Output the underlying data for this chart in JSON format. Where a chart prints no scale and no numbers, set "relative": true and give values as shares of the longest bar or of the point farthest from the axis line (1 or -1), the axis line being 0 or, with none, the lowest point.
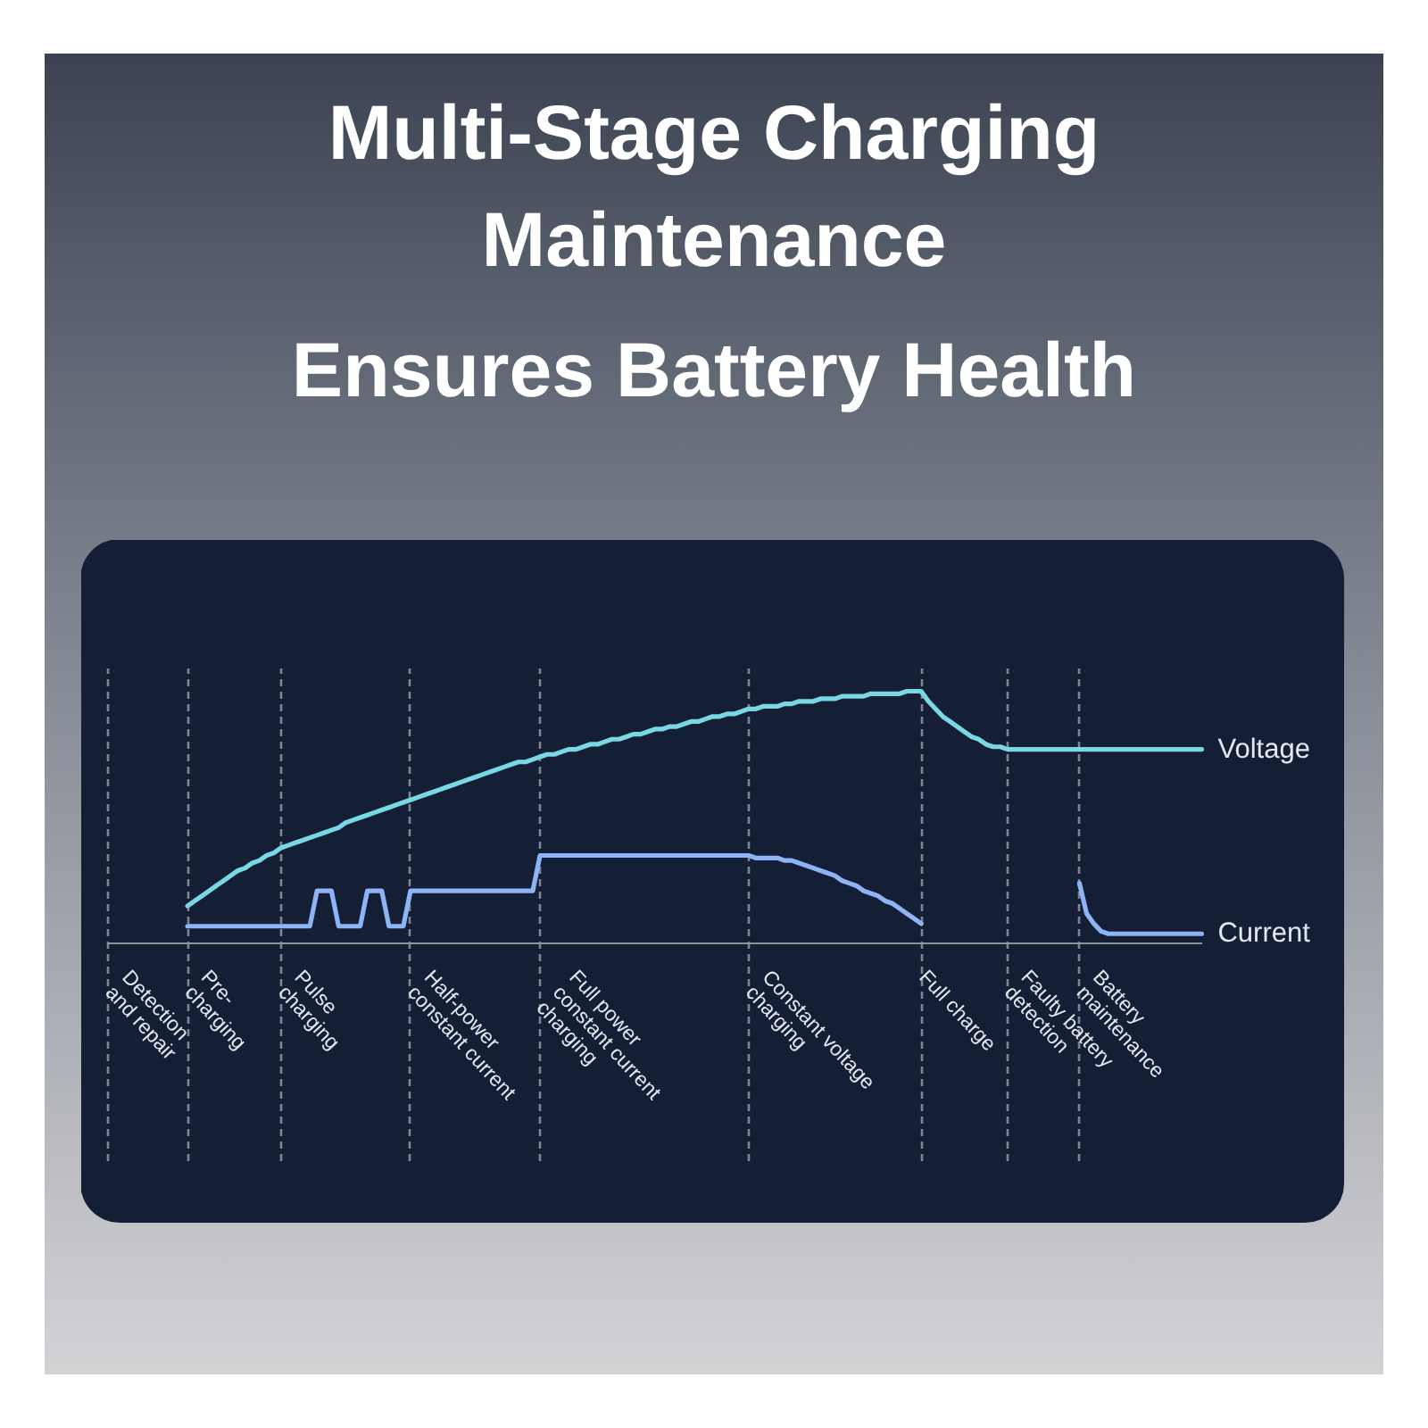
{
  "chart_data": {
    "type": "line",
    "title": "Multi-Stage Charging Maintenance",
    "subtitle": "Ensures Battery Health",
    "relative": true,
    "grid": "x",
    "categories": [
      "Detection\nand repair",
      null,
      null,
      null,
      null,
      null,
      null,
      null,
      null,
      null,
      null,
      "Pre-\ncharging",
      null,
      null,
      null,
      null,
      null,
      null,
      null,
      null,
      null,
      null,
      null,
      null,
      "Pulse\ncharging",
      null,
      null,
      null,
      null,
      null,
      null,
      null,
      null,
      null,
      null,
      null,
      null,
      null,
      null,
      null,
      null,
      null,
      "Half-power\nconstant current",
      null,
      null,
      null,
      null,
      null,
      null,
      null,
      null,
      null,
      null,
      null,
      null,
      null,
      null,
      null,
      null,
      null,
      "Full power\nconstant current\ncharging",
      null,
      null,
      null,
      null,
      null,
      null,
      null,
      null,
      null,
      null,
      null,
      null,
      null,
      null,
      null,
      null,
      null,
      null,
      null,
      null,
      null,
      null,
      null,
      null,
      null,
      null,
      null,
      null,
      "Constant voltage\ncharging",
      null,
      null,
      null,
      null,
      null,
      null,
      null,
      null,
      null,
      null,
      null,
      null,
      null,
      null,
      null,
      null,
      null,
      null,
      null,
      null,
      null,
      null,
      null,
      "Full charge",
      null,
      null,
      null,
      null,
      null,
      null,
      null,
      null,
      null,
      null,
      null,
      "Faulty battery\ndetection",
      null,
      null,
      null,
      null,
      null,
      null,
      null,
      null,
      null,
      "Battery\nmaintenance",
      null,
      null,
      null,
      null,
      null,
      null,
      null,
      null,
      null,
      null,
      null,
      null,
      null,
      null,
      null,
      null,
      null
    ],
    "series": [
      {
        "name": "Voltage",
        "color": "#78d8e6",
        "values": [
          null,
          null,
          null,
          null,
          null,
          null,
          null,
          null,
          null,
          null,
          null,
          0.15,
          0.17,
          0.19,
          0.21,
          0.23,
          0.25,
          0.27,
          0.29,
          0.3,
          0.32,
          0.33,
          0.35,
          0.36,
          0.38,
          0.39,
          0.4,
          0.41,
          0.42,
          0.43,
          0.44,
          0.45,
          0.46,
          0.48,
          0.49,
          0.5,
          0.51,
          0.52,
          0.53,
          0.54,
          0.55,
          0.56,
          0.57,
          0.58,
          0.59,
          0.6,
          0.61,
          0.62,
          0.63,
          0.64,
          0.65,
          0.66,
          0.67,
          0.68,
          0.69,
          0.7,
          0.71,
          0.72,
          0.72,
          0.73,
          0.74,
          0.75,
          0.75,
          0.76,
          0.77,
          0.77,
          0.78,
          0.79,
          0.79,
          0.8,
          0.81,
          0.81,
          0.82,
          0.83,
          0.83,
          0.84,
          0.85,
          0.85,
          0.86,
          0.86,
          0.87,
          0.88,
          0.88,
          0.89,
          0.9,
          0.9,
          0.91,
          0.91,
          0.92,
          0.93,
          0.93,
          0.94,
          0.94,
          0.94,
          0.95,
          0.95,
          0.96,
          0.96,
          0.96,
          0.97,
          0.97,
          0.97,
          0.98,
          0.98,
          0.98,
          0.98,
          0.99,
          0.99,
          0.99,
          0.99,
          0.99,
          1.0,
          1.0,
          1.0,
          0.96,
          0.93,
          0.9,
          0.88,
          0.86,
          0.84,
          0.82,
          0.81,
          0.79,
          0.78,
          0.78,
          0.77,
          0.77,
          0.77,
          0.77,
          0.77,
          0.77,
          0.77,
          0.77,
          0.77,
          0.77,
          0.77,
          0.77,
          0.77,
          0.77,
          0.77,
          0.77,
          0.77,
          0.77,
          0.77,
          0.77,
          0.77,
          0.77,
          0.77,
          0.77,
          0.77,
          0.77,
          0.77,
          0.77
        ]
      },
      {
        "name": "Current",
        "color": "#8fb4f5",
        "values": [
          null,
          null,
          null,
          null,
          null,
          null,
          null,
          null,
          null,
          null,
          null,
          0.07,
          0.07,
          0.07,
          0.07,
          0.07,
          0.07,
          0.07,
          0.07,
          0.07,
          0.07,
          0.07,
          0.07,
          0.07,
          0.07,
          0.07,
          0.07,
          0.07,
          0.07,
          0.21,
          0.21,
          0.21,
          0.07,
          0.07,
          0.07,
          0.07,
          0.21,
          0.21,
          0.21,
          0.07,
          0.07,
          0.07,
          0.21,
          0.21,
          0.21,
          0.21,
          0.21,
          0.21,
          0.21,
          0.21,
          0.21,
          0.21,
          0.21,
          0.21,
          0.21,
          0.21,
          0.21,
          0.21,
          0.21,
          0.21,
          0.35,
          0.35,
          0.35,
          0.35,
          0.35,
          0.35,
          0.35,
          0.35,
          0.35,
          0.35,
          0.35,
          0.35,
          0.35,
          0.35,
          0.35,
          0.35,
          0.35,
          0.35,
          0.35,
          0.35,
          0.35,
          0.35,
          0.35,
          0.35,
          0.35,
          0.35,
          0.35,
          0.35,
          0.35,
          0.35,
          0.34,
          0.34,
          0.34,
          0.34,
          0.33,
          0.33,
          0.32,
          0.31,
          0.3,
          0.29,
          0.28,
          0.27,
          0.25,
          0.24,
          0.23,
          0.21,
          0.2,
          0.19,
          0.17,
          0.16,
          0.14,
          0.12,
          0.1,
          0.08,
          null,
          null,
          null,
          null,
          null,
          null,
          null,
          null,
          null,
          null,
          null,
          null,
          null,
          null,
          null,
          null,
          null,
          null,
          null,
          null,
          null,
          0.24,
          0.12,
          0.08,
          0.05,
          0.04,
          0.04,
          0.04,
          0.04,
          0.04,
          0.04,
          0.04,
          0.04,
          0.04,
          0.04,
          0.04,
          0.04,
          0.04,
          0.04
        ]
      }
    ]
  }
}
